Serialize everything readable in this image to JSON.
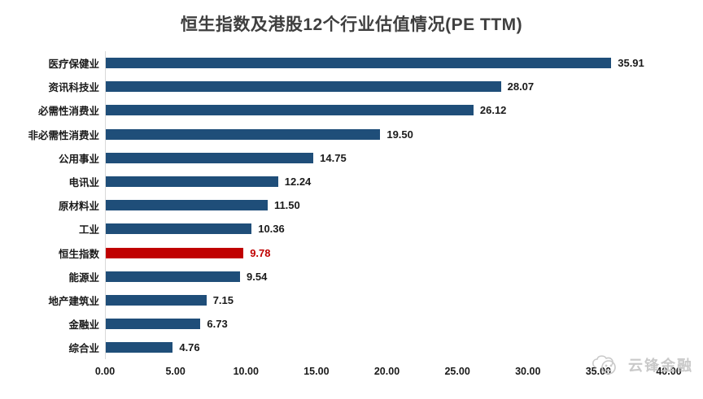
{
  "title": "恒生指数及港股12个行业估值情况(PE TTM)",
  "colors": {
    "bar": "#1F4E79",
    "highlight": "#C00000",
    "title_text": "#3F3F3F",
    "label_text": "#1A1A1A",
    "axis_line": "#D9D9D9",
    "watermark": "#C9C9C9"
  },
  "chart_data": {
    "type": "bar",
    "orientation": "horizontal",
    "title": "恒生指数及港股12个行业估值情况(PE TTM)",
    "categories": [
      "医疗保健业",
      "资讯科技业",
      "必需性消费业",
      "非必需性消费业",
      "公用事业",
      "电讯业",
      "原材料业",
      "工业",
      "恒生指数",
      "能源业",
      "地产建筑业",
      "金融业",
      "综合业"
    ],
    "values": [
      35.91,
      28.07,
      26.12,
      19.5,
      14.75,
      12.24,
      11.5,
      10.36,
      9.78,
      9.54,
      7.15,
      6.73,
      4.76
    ],
    "value_labels": [
      "35.91",
      "28.07",
      "26.12",
      "19.50",
      "14.75",
      "12.24",
      "11.50",
      "10.36",
      "9.78",
      "9.54",
      "7.15",
      "6.73",
      "4.76"
    ],
    "highlight_category": "恒生指数",
    "highlight_index": 8,
    "xlim": [
      0,
      40
    ],
    "x_ticks": [
      "0.00",
      "5.00",
      "10.00",
      "15.00",
      "20.00",
      "25.00",
      "30.00",
      "35.00",
      "40.00"
    ],
    "grid": false,
    "legend": false,
    "data_labels_shown": true
  },
  "watermark": {
    "text": "云锋金融",
    "logo": "yunfeng-cloud-logo"
  }
}
